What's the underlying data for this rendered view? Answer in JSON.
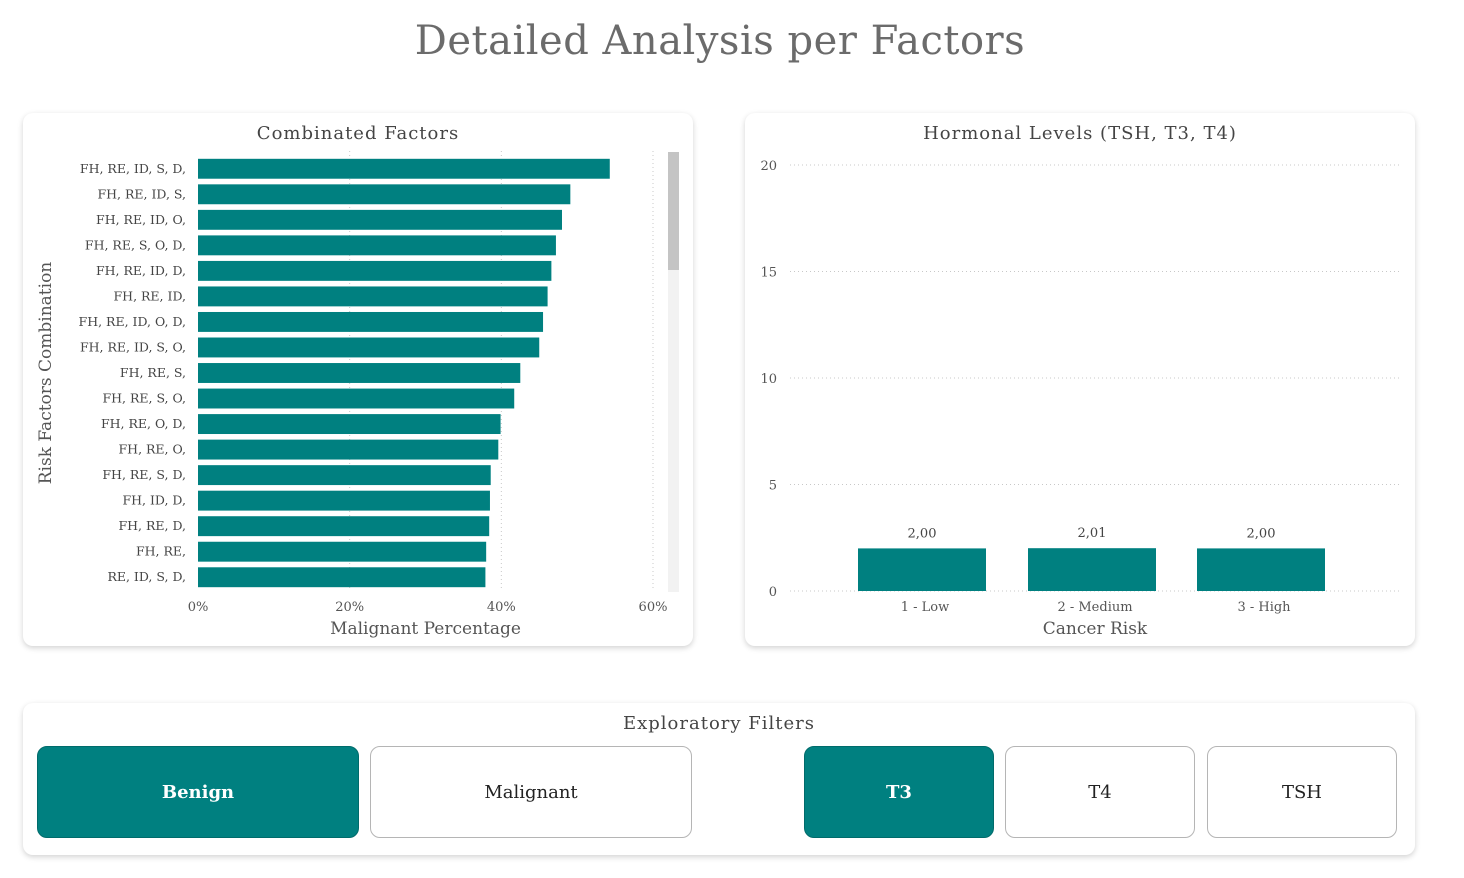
{
  "page": {
    "title": "Detailed Analysis per Factors"
  },
  "colors": {
    "bar": "#008080",
    "grid": "#c8c8c8",
    "scroll_track": "#f2f2f2",
    "scroll_thumb": "#c4c4c4"
  },
  "chart_data": [
    {
      "type": "bar",
      "orientation": "horizontal",
      "title": "Combinated Factors",
      "xlabel": "Malignant Percentage",
      "ylabel": "Risk Factors Combination",
      "xlim": [
        0,
        60
      ],
      "xticks": [
        0,
        20,
        40,
        60
      ],
      "xtick_labels": [
        "0%",
        "20%",
        "40%",
        "60%"
      ],
      "grid": true,
      "categories": [
        "FH, RE, ID, S, D,",
        "FH, RE, ID, S,",
        "FH, RE, ID, O,",
        "FH, RE, S, O, D,",
        "FH, RE, ID, D,",
        "FH, RE, ID,",
        "FH, RE, ID, O, D,",
        "FH, RE, ID, S, O,",
        "FH, RE, S,",
        "FH, RE, S, O,",
        "FH, RE, O, D,",
        "FH, RE, O,",
        "FH, RE, S, D,",
        "FH, ID, D,",
        "FH, RE, D,",
        "FH, RE,",
        "RE, ID, S, D,"
      ],
      "values": [
        54.3,
        49.1,
        48.0,
        47.2,
        46.6,
        46.1,
        45.5,
        45.0,
        42.5,
        41.7,
        39.9,
        39.6,
        38.6,
        38.5,
        38.4,
        38.0,
        37.9
      ]
    },
    {
      "type": "bar",
      "title": "Hormonal Levels (TSH, T3, T4)",
      "xlabel": "Cancer Risk",
      "ylabel": "",
      "ylim": [
        0,
        20
      ],
      "yticks": [
        0,
        5,
        10,
        15,
        20
      ],
      "grid": true,
      "categories": [
        "1 - Low",
        "2 - Medium",
        "3 - High"
      ],
      "values": [
        2.0,
        2.01,
        2.0
      ],
      "data_labels": [
        "2,00",
        "2,01",
        "2,00"
      ]
    }
  ],
  "filters": {
    "title": "Exploratory Filters",
    "diagnosis": [
      {
        "label": "Benign",
        "selected": true
      },
      {
        "label": "Malignant",
        "selected": false
      }
    ],
    "hormone": [
      {
        "label": "T3",
        "selected": true
      },
      {
        "label": "T4",
        "selected": false
      },
      {
        "label": "TSH",
        "selected": false
      }
    ]
  }
}
